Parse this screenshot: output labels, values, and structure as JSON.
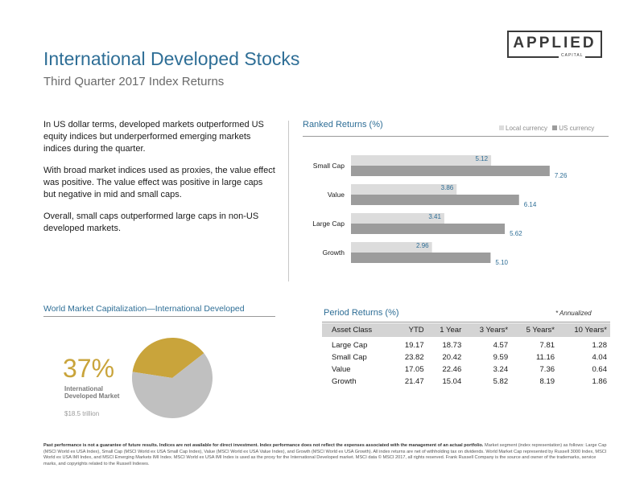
{
  "header": {
    "title": "International Developed Stocks",
    "subtitle": "Third Quarter 2017 Index Returns",
    "logo_word": "APPLIED",
    "logo_sub": "CAPITAL"
  },
  "intro": [
    "In US dollar terms, developed markets outperformed US equity indices but underperformed emerging markets indices during the quarter.",
    "With broad market indices used as proxies, the value effect was positive. The value effect was positive in large caps but negative in mid and small caps.",
    "Overall, small caps outperformed large caps in non-US developed markets."
  ],
  "ranked": {
    "title": "Ranked Returns (%)",
    "legend_local": "Local currency",
    "legend_us": "US currency"
  },
  "colors": {
    "title_blue": "#2e6e96",
    "local_bar": "#dcdcdc",
    "us_bar": "#9c9c9c",
    "gold": "#c9a43b",
    "pie_rest": "#c0c0c0"
  },
  "chart_data": [
    {
      "type": "bar",
      "orientation": "horizontal",
      "title": "Ranked Returns (%)",
      "categories": [
        "Small Cap",
        "Value",
        "Large Cap",
        "Growth"
      ],
      "series": [
        {
          "name": "Local currency",
          "values": [
            5.12,
            3.86,
            3.41,
            2.96
          ]
        },
        {
          "name": "US currency",
          "values": [
            7.26,
            6.14,
            5.62,
            5.1
          ]
        }
      ],
      "xlim": [
        0,
        8
      ],
      "grid": false,
      "legend": "top-right"
    },
    {
      "type": "pie",
      "title": "World Market Capitalization—International Developed",
      "slices": [
        {
          "label": "International Developed Market",
          "value": 37
        },
        {
          "label": "",
          "value": 63
        }
      ]
    },
    {
      "type": "table",
      "title": "Period Returns (%)",
      "columns": [
        "Asset Class",
        "YTD",
        "1 Year",
        "3 Years*",
        "5 Years*",
        "10 Years*"
      ],
      "rows": [
        [
          "Large Cap",
          "19.17",
          "18.73",
          "4.57",
          "7.81",
          "1.28"
        ],
        [
          "Small Cap",
          "23.82",
          "20.42",
          "9.59",
          "11.16",
          "4.04"
        ],
        [
          "Value",
          "17.05",
          "22.46",
          "3.24",
          "7.36",
          "0.64"
        ],
        [
          "Growth",
          "21.47",
          "15.04",
          "5.82",
          "8.19",
          "1.86"
        ]
      ]
    }
  ],
  "period": {
    "title": "Period Returns (%)",
    "annotation": "* Annualized"
  },
  "wmc": {
    "title": "World Market Capitalization—International Developed",
    "big_pct": "37%",
    "label": "International Developed Market",
    "value": "$18.5 trillion"
  },
  "footnote": {
    "bold": "Past performance is not a guarantee of future results. Indices are not available for direct investment. Index performance does not reflect the expenses associated with the management of an actual portfolio.",
    "body": "Market segment (index representation) as follows: Large Cap (MSCI World ex USA Index), Small Cap (MSCI World ex USA Small Cap Index), Value (MSCI World ex USA Value Index), and Growth (MSCI World ex USA Growth). All index returns are net of withholding tax on dividends. World Market Cap represented by Russell 3000 Index, MSCI World ex USA IMI Index, and MSCI Emerging Markets IMI Index. MSCI World ex USA IMI Index is used as the proxy for the International Developed market. MSCI data © MSCI 2017, all rights reserved. Frank Russell Company is the source and owner of the trademarks, service marks, and copyrights related to the Russell Indexes."
  }
}
